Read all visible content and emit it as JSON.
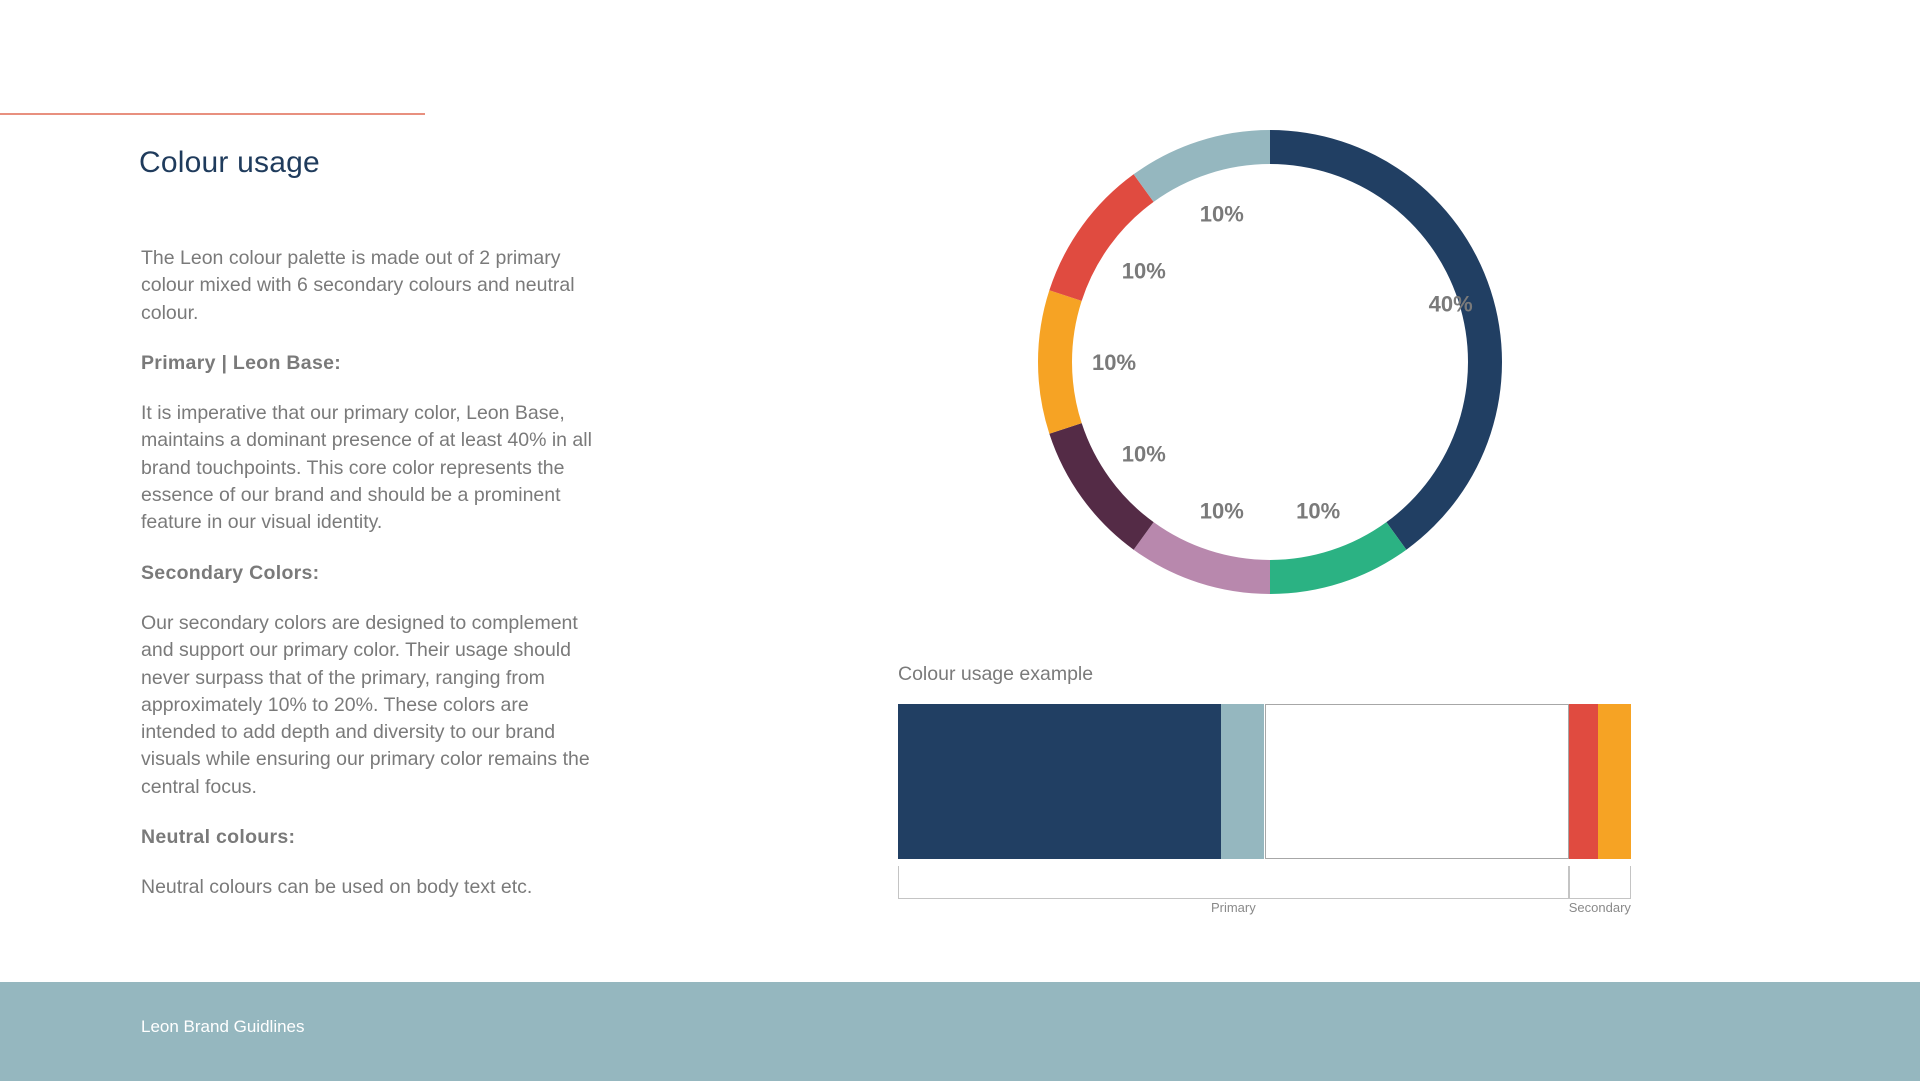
{
  "page": {
    "title": "Colour usage",
    "intro": "The Leon colour palette is made out of 2 primary colour mixed with 6 secondary colours and neutral colour.",
    "primary_heading": "Primary | Leon Base:",
    "primary_body": "It is imperative that our primary color, Leon Base, maintains a dominant presence of at least 40% in all brand touchpoints. This core color represents the essence of our brand and should be a prominent feature in our visual identity.",
    "secondary_heading": "Secondary Colors:",
    "secondary_body": "Our secondary colors are designed to complement and support our primary color. Their usage should never surpass that of the primary, ranging from approximately 10% to 20%. These colors are intended to add depth and diversity to our brand visuals while ensuring our primary color remains the central focus.",
    "neutral_heading": "Neutral colours:",
    "neutral_body": "Neutral colours can be used on body text etc."
  },
  "colors": {
    "accent_rule": "#e8907f",
    "title": "#1f3b5c",
    "footer_bg": "#95b7bf"
  },
  "chart_data": [
    {
      "type": "pie",
      "title": "",
      "variant": "donut",
      "start": "top",
      "direction": "clockwise",
      "slices": [
        {
          "value": 40,
          "label": "40%",
          "color": "#213f63"
        },
        {
          "value": 10,
          "label": "10%",
          "color": "#2bb283"
        },
        {
          "value": 10,
          "label": "10%",
          "color": "#b888ad"
        },
        {
          "value": 10,
          "label": "10%",
          "color": "#542b46"
        },
        {
          "value": 10,
          "label": "10%",
          "color": "#f6a324"
        },
        {
          "value": 10,
          "label": "10%",
          "color": "#e04b40"
        },
        {
          "value": 10,
          "label": "10%",
          "color": "#95b7bf"
        }
      ]
    },
    {
      "type": "bar",
      "title": "Colour usage example",
      "orientation": "horizontal-stacked",
      "segments": [
        {
          "value": 44,
          "color": "#213f63"
        },
        {
          "value": 6,
          "color": "#95b7bf"
        },
        {
          "value": 41.5,
          "color": "#ffffff"
        },
        {
          "value": 4,
          "color": "#e04b40"
        },
        {
          "value": 4.5,
          "color": "#f6a324"
        }
      ],
      "brackets": [
        {
          "label": "Primary",
          "from": 0,
          "to": 91.5
        },
        {
          "label": "Secondary",
          "from": 91.5,
          "to": 100
        }
      ]
    }
  ],
  "footer": {
    "text": "Leon Brand Guidlines"
  }
}
